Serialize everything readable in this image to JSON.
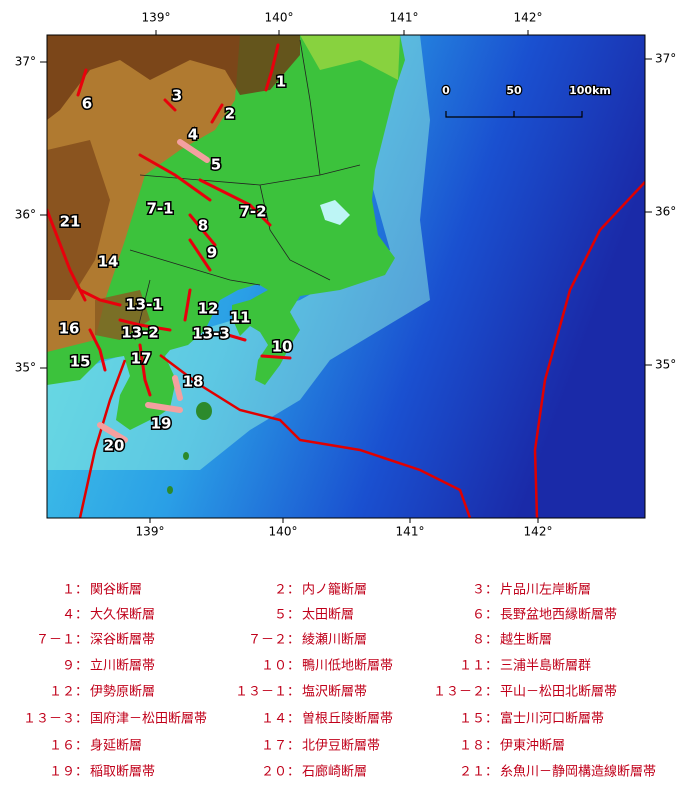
{
  "map": {
    "top_labels": [
      "139°",
      "140°",
      "141°",
      "142°"
    ],
    "bottom_labels": [
      "139°",
      "140°",
      "141°",
      "142°"
    ],
    "left_labels": [
      "37°",
      "36°",
      "35°"
    ],
    "right_labels": [
      "37°",
      "36°",
      "35°"
    ],
    "scale": [
      "0",
      "50",
      "100km"
    ],
    "fault_labels": [
      "1",
      "2",
      "3",
      "4",
      "5",
      "6",
      "7-1",
      "7-2",
      "8",
      "9",
      "10",
      "11",
      "12",
      "13-1",
      "13-2",
      "13-3",
      "14",
      "15",
      "16",
      "17",
      "18",
      "19",
      "20",
      "21"
    ]
  },
  "legend": [
    {
      "key": "１：",
      "name": "関谷断層"
    },
    {
      "key": "２：",
      "name": "内ノ籠断層"
    },
    {
      "key": "３：",
      "name": "片品川左岸断層"
    },
    {
      "key": "４：",
      "name": "大久保断層"
    },
    {
      "key": "５：",
      "name": "太田断層"
    },
    {
      "key": "６：",
      "name": "長野盆地西縁断層帯"
    },
    {
      "key": "７－１：",
      "name": "深谷断層帯"
    },
    {
      "key": "７－２：",
      "name": "綾瀬川断層"
    },
    {
      "key": "８：",
      "name": "越生断層"
    },
    {
      "key": "９：",
      "name": "立川断層帯"
    },
    {
      "key": "１０：",
      "name": "鴨川低地断層帯"
    },
    {
      "key": "１１：",
      "name": "三浦半島断層群"
    },
    {
      "key": "１２：",
      "name": "伊勢原断層"
    },
    {
      "key": "１３－１：",
      "name": "塩沢断層帯"
    },
    {
      "key": "１３－２：",
      "name": "平山－松田北断層帯"
    },
    {
      "key": "１３－３：",
      "name": "国府津－松田断層帯"
    },
    {
      "key": "１４：",
      "name": "曽根丘陵断層帯"
    },
    {
      "key": "１５：",
      "name": "富士川河口断層帯"
    },
    {
      "key": "１６：",
      "name": "身延断層"
    },
    {
      "key": "１７：",
      "name": "北伊豆断層帯"
    },
    {
      "key": "１８：",
      "name": "伊東沖断層"
    },
    {
      "key": "１９：",
      "name": "稲取断層帯"
    },
    {
      "key": "２０：",
      "name": "石廊崎断層"
    },
    {
      "key": "２１：",
      "name": "糸魚川－静岡構造線断層帯"
    }
  ]
}
